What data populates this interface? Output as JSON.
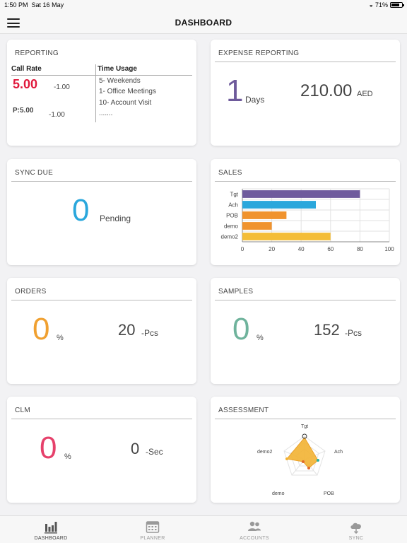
{
  "status_bar": {
    "time": "1:50 PM",
    "date": "Sat 16 May",
    "battery": "71%"
  },
  "header": {
    "title": "DASHBOARD"
  },
  "reporting": {
    "title": "REPORTING",
    "col1_header": "Call Rate",
    "col2_header": "Time Usage",
    "call_rate": "5.00",
    "call_rate_delta": "-1.00",
    "p_value": "P:5.00",
    "p_delta": "-1.00",
    "time_usage": [
      "5- Weekends",
      "1- Office Meetings",
      "10- Account Visit",
      "......."
    ]
  },
  "expense": {
    "title": "EXPENSE REPORTING",
    "days_value": "1",
    "days_label": "Days",
    "amount": "210.00",
    "currency": "AED"
  },
  "sync": {
    "title": "SYNC DUE",
    "value": "0",
    "label": "Pending"
  },
  "sales": {
    "title": "SALES"
  },
  "orders": {
    "title": "ORDERS",
    "value": "0",
    "unit": "%",
    "pcs_value": "20",
    "pcs_label": "-Pcs"
  },
  "samples": {
    "title": "SAMPLES",
    "value": "0",
    "unit": "%",
    "pcs_value": "152",
    "pcs_label": "-Pcs"
  },
  "clm": {
    "title": "CLM",
    "value": "0",
    "unit": "%",
    "sec_value": "0",
    "sec_label": "-Sec"
  },
  "assessment": {
    "title": "ASSESSMENT",
    "labels": [
      "Tgt",
      "Ach",
      "POB",
      "demo",
      "demo2"
    ]
  },
  "colors": {
    "accent_red": "#e0193c",
    "blue": "#2aa7dc",
    "orange": "#f0a030",
    "teal": "#6fb39c",
    "pink": "#e6416b",
    "purple": "#6e5a9b",
    "bar_tgt": "#6f5b9d",
    "bar_ach": "#2aa7dc",
    "bar_pob": "#f0932e",
    "bar_demo": "#f0932e",
    "bar_demo2": "#f4bd38",
    "radar_fill": "#f2b233"
  },
  "chart_data": {
    "type": "bar",
    "orientation": "horizontal",
    "categories": [
      "Tgt",
      "Ach",
      "POB",
      "demo",
      "demo2"
    ],
    "values": [
      80,
      50,
      30,
      20,
      60
    ],
    "xlim": [
      0,
      100
    ],
    "xticks": [
      "0",
      "20",
      "40",
      "60",
      "80",
      "100"
    ],
    "grid": true
  },
  "tabs": [
    {
      "label": "DASHBOARD",
      "icon": "bar-chart-icon",
      "active": true
    },
    {
      "label": "PLANNER",
      "icon": "calendar-icon",
      "active": false
    },
    {
      "label": "ACCOUNTS",
      "icon": "users-icon",
      "active": false
    },
    {
      "label": "SYNC",
      "icon": "cloud-sync-icon",
      "active": false
    }
  ]
}
